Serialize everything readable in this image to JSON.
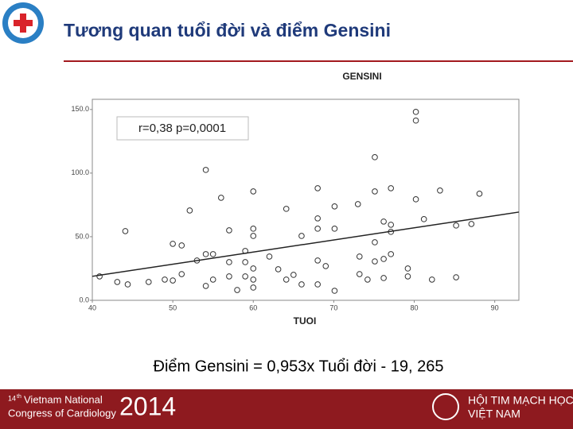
{
  "slide": {
    "title": "Tương quan tuổi đời và điểm Gensini",
    "equation": "Điểm Gensini = 0,953x Tuổi đời  - 19, 265",
    "footer_left": {
      "ordinal": "14",
      "suffix": "th",
      "line1": "Vietnam National",
      "line2": "Congress of Cardiology",
      "year": "2014"
    },
    "footer_right": {
      "line1": "HỘI TIM MẠCH HỌC",
      "line2": "VIỆT NAM"
    }
  },
  "chart_data": {
    "type": "scatter",
    "title": "GENSINI",
    "x_label": "TUOI",
    "annotation": "r=0,38 p=0,0001",
    "color": "#333333",
    "x": [
      40.9,
      43.1,
      44.1,
      44.4,
      47.0,
      49.0,
      50.0,
      50.0,
      51.1,
      51.1,
      52.1,
      53.0,
      54.1,
      54.1,
      54.1,
      55.0,
      55.0,
      56.0,
      57.0,
      57.0,
      57.0,
      58.0,
      59.0,
      59.0,
      59.0,
      60.0,
      60.0,
      60.0,
      60.0,
      60.0,
      60.0,
      62.0,
      63.1,
      64.1,
      64.1,
      65.0,
      66.0,
      66.0,
      68.0,
      68.0,
      68.0,
      68.0,
      68.0,
      69.0,
      70.1,
      70.1,
      70.1,
      73.0,
      73.2,
      73.2,
      74.2,
      75.1,
      75.1,
      75.1,
      75.1,
      76.2,
      76.2,
      76.2,
      77.1,
      77.1,
      77.1,
      77.1,
      79.2,
      79.2,
      80.2,
      80.2,
      80.2,
      81.2,
      82.2,
      83.2,
      85.2,
      85.2,
      87.1,
      88.1
    ],
    "values": [
      18.8,
      14.4,
      54.4,
      12.5,
      14.4,
      16.3,
      44.4,
      15.6,
      43.1,
      20.6,
      70.6,
      31.3,
      102.5,
      36.3,
      11.3,
      36.3,
      16.3,
      80.6,
      55.0,
      30.0,
      18.8,
      8.1,
      38.8,
      30.0,
      18.8,
      85.6,
      56.3,
      50.6,
      25.0,
      16.3,
      10.0,
      34.4,
      24.4,
      71.9,
      16.3,
      20.0,
      50.6,
      12.5,
      88.1,
      64.4,
      56.3,
      31.3,
      12.5,
      26.9,
      73.8,
      56.3,
      7.5,
      75.6,
      34.4,
      20.6,
      16.3,
      112.5,
      85.6,
      45.6,
      30.6,
      61.9,
      32.5,
      17.5,
      88.1,
      59.4,
      53.8,
      36.3,
      25.0,
      18.8,
      148.1,
      141.3,
      79.4,
      63.8,
      16.3,
      86.3,
      58.8,
      18.1,
      60.0,
      83.8
    ],
    "trendline": {
      "slope": 0.953,
      "intercept": -19.265,
      "color": "#222222"
    },
    "xlim": [
      40,
      93
    ],
    "xticks": [
      40,
      50,
      60,
      70,
      80,
      90
    ],
    "ylim": [
      0,
      158
    ],
    "yticks": [
      {
        "value": 0,
        "label": "0.0"
      },
      {
        "value": 50,
        "label": "50.0"
      },
      {
        "value": 100,
        "label": "100.0"
      },
      {
        "value": 150,
        "label": "150.0"
      }
    ]
  }
}
